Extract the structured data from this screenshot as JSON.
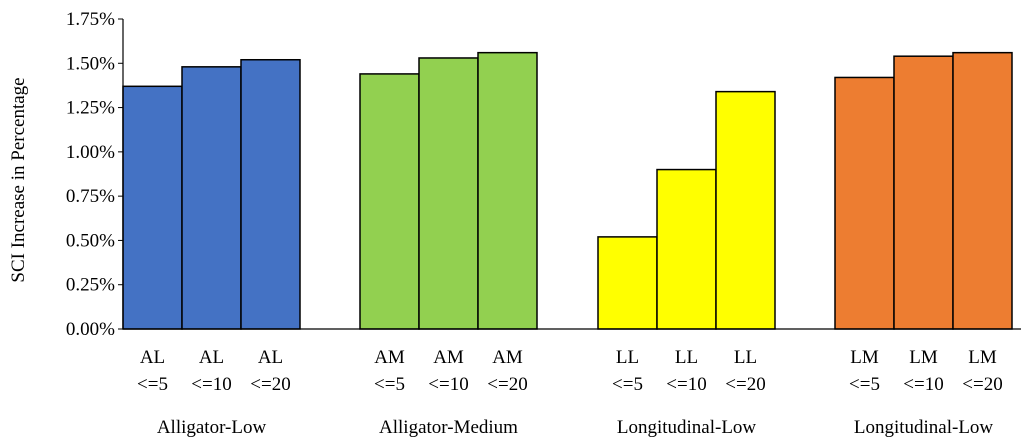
{
  "chart_data": {
    "type": "bar",
    "title": "",
    "xlabel": "",
    "ylabel": "SCI Increase in Percentage",
    "ylim": [
      0,
      1.75
    ],
    "yticks": [
      "0.00%",
      "0.25%",
      "0.50%",
      "0.75%",
      "1.00%",
      "1.25%",
      "1.50%",
      "1.75%"
    ],
    "grid": false,
    "legend": "none",
    "groups": [
      {
        "name": "Alligator-Low",
        "color": "#4472C4",
        "bars": [
          {
            "line1": "AL",
            "line2": "<=5",
            "value": 1.37
          },
          {
            "line1": "AL",
            "line2": "<=10",
            "value": 1.48
          },
          {
            "line1": "AL",
            "line2": "<=20",
            "value": 1.52
          }
        ]
      },
      {
        "name": "Alligator-Medium",
        "color": "#92D050",
        "bars": [
          {
            "line1": "AM",
            "line2": "<=5",
            "value": 1.44
          },
          {
            "line1": "AM",
            "line2": "<=10",
            "value": 1.53
          },
          {
            "line1": "AM",
            "line2": "<=20",
            "value": 1.56
          }
        ]
      },
      {
        "name": "Longitudinal-Low",
        "color": "#FFFF00",
        "bars": [
          {
            "line1": "LL",
            "line2": "<=5",
            "value": 0.52
          },
          {
            "line1": "LL",
            "line2": "<=10",
            "value": 0.9
          },
          {
            "line1": "LL",
            "line2": "<=20",
            "value": 1.34
          }
        ]
      },
      {
        "name": "Longitudinal-Low",
        "color": "#ED7D31",
        "bars": [
          {
            "line1": "LM",
            "line2": "<=5",
            "value": 1.42
          },
          {
            "line1": "LM",
            "line2": "<=10",
            "value": 1.54
          },
          {
            "line1": "LM",
            "line2": "<=20",
            "value": 1.56
          }
        ]
      }
    ]
  }
}
